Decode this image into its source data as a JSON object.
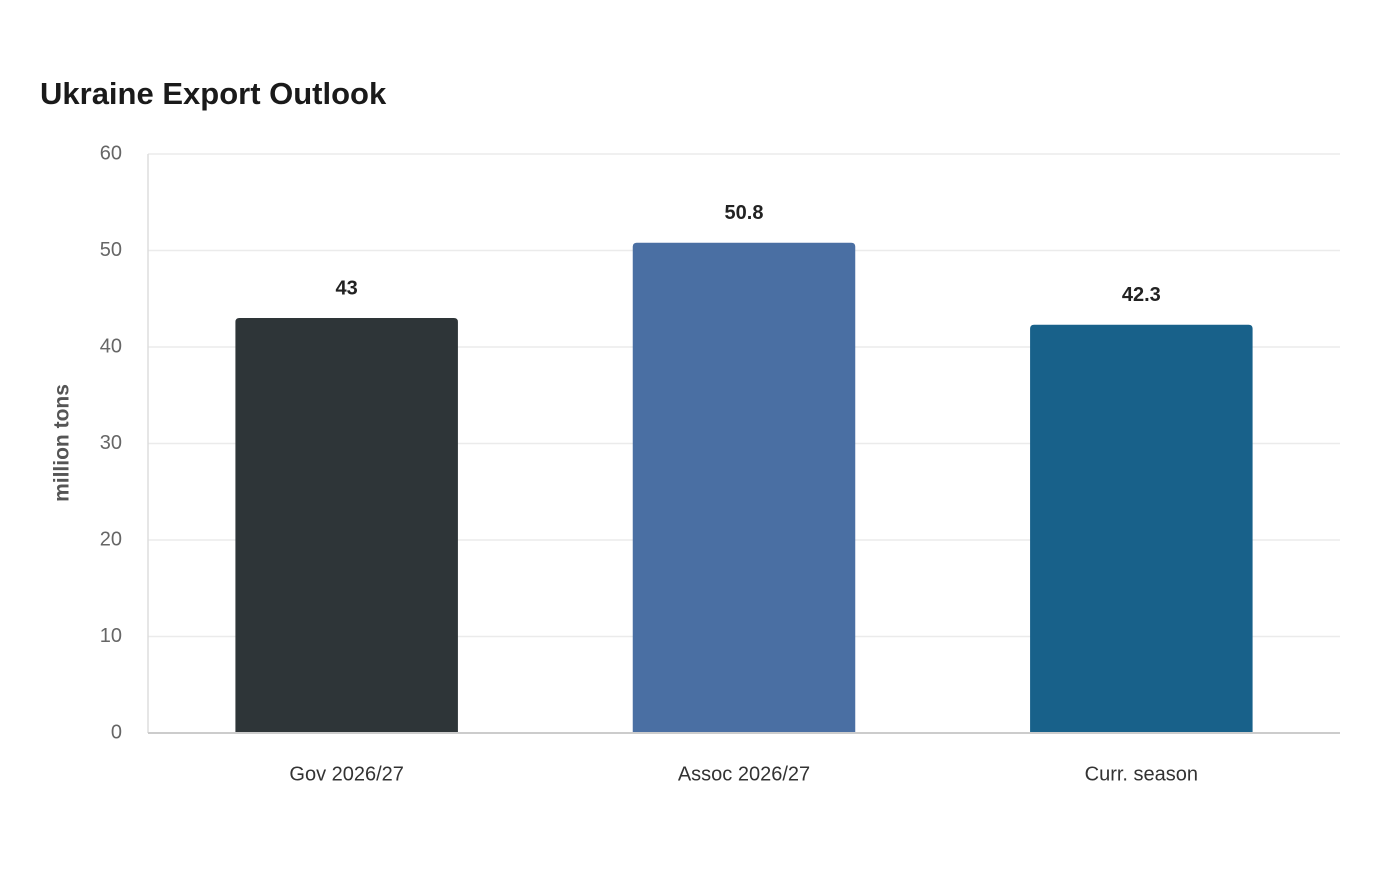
{
  "chart_data": {
    "type": "bar",
    "title": "Ukraine Export Outlook",
    "ylabel": "million tons",
    "categories": [
      "Gov 2026/27",
      "Assoc 2026/27",
      "Curr. season"
    ],
    "values": [
      43,
      50.8,
      42.3
    ],
    "colors": [
      "#2e3538",
      "#4a6fa3",
      "#18618a"
    ],
    "ylim": [
      0,
      60
    ],
    "yticks": [
      0,
      10,
      20,
      30,
      40,
      50,
      60
    ],
    "grid": true
  }
}
